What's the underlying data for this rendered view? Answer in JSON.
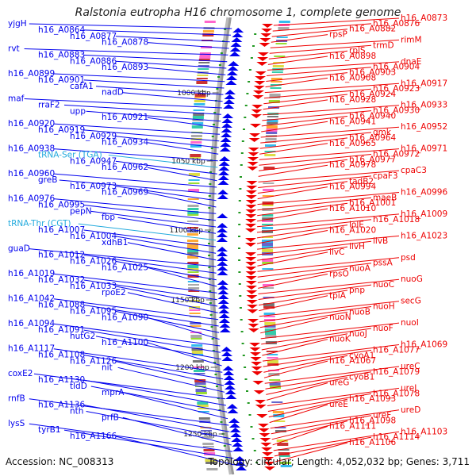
{
  "title": "Ralstonia eutropha H16 chromosome 1, complete genome",
  "footer": {
    "accession": "Accession: NC_008313",
    "summary": "Topology: circular; Length: 4,052,032 bp; Genes: 3,711"
  },
  "colors": {
    "forward": "#0000ee",
    "reverse": "#ee0000",
    "trna": "#22aadd",
    "backbone": "#999999",
    "tick": "#229922"
  },
  "scale_marks": [
    "1000 kbp",
    "1050 kbp",
    "1100 kbp",
    "1150 kbp",
    "1200 kbp",
    "1250 kbp"
  ],
  "forward_labels": [
    "yjgH",
    "h16_A0864",
    "h16_A0877",
    "h16_A0878",
    "rvt",
    "h16_A0883",
    "h16_A0886",
    "h16_A0893",
    "h16_A0899",
    "h16_A0901",
    "cafA1",
    "nadD",
    "maf",
    "rraF2",
    "upp",
    "h16_A0921",
    "h16_A0920",
    "h16_A0919",
    "h16_A0929",
    "h16_A0934",
    "h16_A0938",
    "tRNA-Ser (TGA)",
    "h16_A0947",
    "h16_A0962",
    "h16_A0960",
    "greB",
    "h16_A0973",
    "h16_A0969",
    "h16_A0976",
    "h16_A0995",
    "pepN",
    "fbp",
    "tRNA-Thr (CGT)",
    "h16_A1007",
    "h16_A1004",
    "xdhB1",
    "guaD",
    "h16_A1012",
    "h16_A1026",
    "h16_A1025",
    "h16_A1019",
    "h16_A1032",
    "h16_A1033",
    "rpoE2",
    "h16_A1042",
    "h16_A1088",
    "h16_A1095",
    "h16_A1090",
    "h16_A1094",
    "h16_A1091",
    "hutG2",
    "h16_A1100",
    "h16_A1117",
    "h16_A1108",
    "h16_A1126",
    "nit",
    "coxE2",
    "h16_A1130",
    "tldD",
    "mprA",
    "rnfB",
    "h16_A1136",
    "nth",
    "prfB",
    "lysS",
    "tyrB1",
    "h16_A1166"
  ],
  "reverse_labels": [
    "h16_A0873",
    "h16_A0876",
    "h16_A0882",
    "rpsP",
    "rimM",
    "trmD",
    "rplS",
    "h16_A0898",
    "dnaE",
    "h16_A0904",
    "h16_A0903",
    "h16_A0908",
    "h16_A0917",
    "h16_A0923",
    "h16_A0924",
    "h16_A0928",
    "h16_A0933",
    "h16_A0930",
    "h16_A0940",
    "h16_A0941",
    "h16_A0952",
    "gmk",
    "h16_A0964",
    "h16_A0965",
    "h16_A0971",
    "h16_A0972",
    "h16_A0977",
    "h16_A0978",
    "cpaC3",
    "cpaF3",
    "tadB2",
    "h16_A0994",
    "h16_A0996",
    "maeB",
    "h16_A1001",
    "h16_A1010",
    "h16_A1009",
    "h16_A1018",
    "lolE",
    "h16_A1020",
    "h16_A1023",
    "ilvB",
    "ilvH",
    "ilvC",
    "psd",
    "pssA",
    "nuoA",
    "rpsO",
    "nuoG",
    "nuoC",
    "pnp",
    "tpiA",
    "secG",
    "nuoH",
    "nuoB",
    "nuoN",
    "nuoI",
    "nuoF",
    "nuoJ",
    "nuoK",
    "h16_A1069",
    "h16_A1077",
    "cyoA1",
    "h16_A1067",
    "ureC",
    "h16_A1079",
    "cyoB1",
    "ureG",
    "ureJ",
    "h16_A1078",
    "h16_A1093",
    "ureE",
    "ureD",
    "ureF",
    "h16_A1098",
    "h16_A1111",
    "h16_A1103",
    "h16_A1114",
    "h16_A1106"
  ]
}
